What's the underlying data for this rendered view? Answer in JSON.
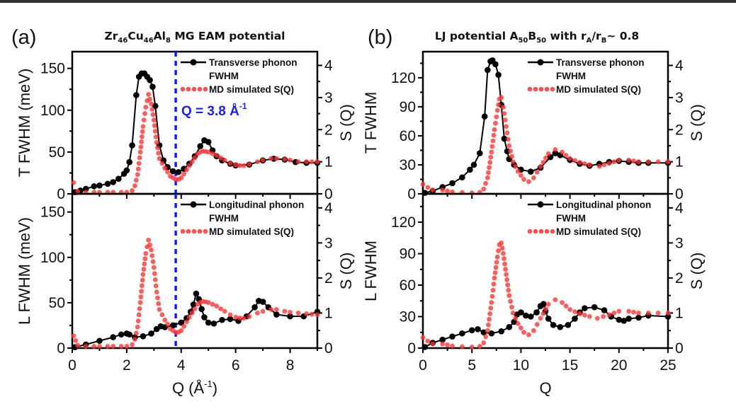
{
  "figure": {
    "panel_letters": [
      "(a)",
      "(b)"
    ],
    "titles": [
      {
        "parts": [
          {
            "t": "Zr",
            "sub": false
          },
          {
            "t": "46",
            "sub": true
          },
          {
            "t": "Cu",
            "sub": false
          },
          {
            "t": "46",
            "sub": true
          },
          {
            "t": "Al",
            "sub": false
          },
          {
            "t": "8",
            "sub": true
          },
          {
            "t": " MG EAM potential",
            "sub": false
          }
        ]
      },
      {
        "parts": [
          {
            "t": "LJ potential A",
            "sub": false
          },
          {
            "t": "50",
            "sub": true
          },
          {
            "t": "B",
            "sub": false
          },
          {
            "t": "50",
            "sub": true
          },
          {
            "t": " with r",
            "sub": false
          },
          {
            "t": "A",
            "sub": true
          },
          {
            "t": "/r",
            "sub": false
          },
          {
            "t": "B",
            "sub": true
          },
          {
            "t": "~ 0.8",
            "sub": false
          }
        ]
      }
    ],
    "annotation": {
      "text": "Q = 3.8 Å",
      "sup": "-1",
      "q": 3.8,
      "color": "#1a1aff"
    },
    "colors": {
      "fwhm": "#000000",
      "sq": "#ff3333",
      "marker_line": "#1a1aff"
    }
  },
  "chart_data": [
    {
      "id": "a-top",
      "type": "line",
      "xlim": [
        0,
        9
      ],
      "ylim": [
        0,
        170
      ],
      "y2lim": [
        0,
        4.43
      ],
      "xticks": [
        0,
        2,
        4,
        6,
        8
      ],
      "yticks": [
        0,
        50,
        100,
        150
      ],
      "y2ticks": [
        0,
        1,
        2,
        3,
        4
      ],
      "xticklabels_shown": false,
      "xlabel": "",
      "ylabel": "T FWHM (meV)",
      "y2label": "S (Q)",
      "vline": 3.8,
      "legend": [
        "Transverse phonon",
        "FWHM",
        "MD simulated S(Q)"
      ],
      "series": [
        {
          "name": "Transverse phonon FWHM",
          "axis": "left",
          "style": "line-dot",
          "x": [
            0.1,
            0.3,
            0.5,
            0.8,
            1.0,
            1.3,
            1.5,
            1.7,
            1.9,
            2.0,
            2.1,
            2.2,
            2.35,
            2.45,
            2.55,
            2.65,
            2.75,
            2.85,
            2.95,
            3.05,
            3.2,
            3.35,
            3.5,
            3.7,
            3.9,
            4.1,
            4.3,
            4.5,
            4.7,
            4.85,
            5.0,
            5.15,
            5.3,
            5.5,
            5.8,
            6.0,
            6.5,
            7.0,
            7.4,
            7.8,
            8.2,
            8.6,
            9.0
          ],
          "y": [
            2,
            4,
            6,
            9,
            10,
            12,
            14,
            18,
            24,
            28,
            38,
            58,
            118,
            140,
            144,
            144,
            140,
            136,
            128,
            105,
            58,
            40,
            32,
            27,
            26,
            30,
            36,
            45,
            57,
            64,
            62,
            52,
            45,
            40,
            36,
            34,
            35,
            40,
            42,
            41,
            38,
            37,
            37
          ]
        },
        {
          "name": "MD simulated S(Q)",
          "axis": "right",
          "style": "dots",
          "x": [
            0.05,
            0.2,
            0.5,
            0.8,
            1.0,
            1.3,
            1.5,
            1.8,
            2.0,
            2.2,
            2.3,
            2.4,
            2.5,
            2.6,
            2.7,
            2.8,
            2.9,
            3.0,
            3.1,
            3.2,
            3.3,
            3.4,
            3.5,
            3.6,
            3.7,
            3.8,
            3.9,
            4.0,
            4.1,
            4.2,
            4.3,
            4.4,
            4.5,
            4.6,
            4.7,
            4.8,
            4.9,
            5.0,
            5.15,
            5.3,
            5.45,
            5.6,
            5.8,
            6.0,
            6.15,
            6.3,
            6.5,
            6.8,
            7.0,
            7.3,
            7.5,
            7.8,
            8.0,
            8.3,
            8.6,
            9.0
          ],
          "y": [
            0.35,
            0.08,
            0.05,
            0.05,
            0.05,
            0.05,
            0.05,
            0.05,
            0.05,
            0.1,
            0.25,
            0.6,
            1.3,
            2.1,
            2.7,
            3.1,
            2.8,
            2.3,
            1.6,
            1.1,
            0.95,
            0.8,
            0.68,
            0.55,
            0.5,
            0.45,
            0.45,
            0.5,
            0.62,
            0.75,
            0.88,
            1.0,
            1.12,
            1.25,
            1.3,
            1.33,
            1.32,
            1.3,
            1.25,
            1.2,
            1.12,
            1.05,
            0.95,
            0.9,
            0.88,
            0.88,
            0.92,
            1.0,
            1.05,
            1.1,
            1.1,
            1.08,
            1.05,
            1.0,
            1.0,
            1.0
          ]
        }
      ]
    },
    {
      "id": "a-bottom",
      "type": "line",
      "xlim": [
        0,
        9
      ],
      "ylim": [
        0,
        170
      ],
      "y2lim": [
        0,
        4.4
      ],
      "xticks": [
        0,
        2,
        4,
        6,
        8
      ],
      "yticks": [
        0,
        50,
        100,
        150
      ],
      "y2ticks": [
        0,
        1,
        2,
        3,
        4
      ],
      "xticklabels_shown": true,
      "xlabel": "Q (Å",
      "xlabel_sup": "-1",
      "xlabel_end": ")",
      "ylabel": "L FWHM (meV)",
      "y2label": "S (Q)",
      "vline": 3.8,
      "legend": [
        "Longitudinal phonon",
        "FWHM",
        "MD simulated S(Q)"
      ],
      "series": [
        {
          "name": "Longitudinal phonon FWHM",
          "axis": "left",
          "style": "line-dot",
          "x": [
            0.1,
            0.5,
            1.0,
            1.5,
            1.8,
            2.0,
            2.1,
            2.3,
            2.6,
            2.9,
            3.1,
            3.25,
            3.4,
            3.7,
            4.0,
            4.2,
            4.35,
            4.45,
            4.55,
            4.65,
            4.75,
            4.85,
            5.0,
            5.2,
            5.5,
            5.8,
            6.1,
            6.4,
            6.7,
            6.85,
            7.0,
            7.2,
            7.5,
            8.0,
            8.5,
            9.0
          ],
          "y": [
            1,
            4,
            8,
            12,
            15,
            16,
            15,
            12,
            13,
            16,
            21,
            24,
            23,
            25,
            28,
            33,
            40,
            48,
            60,
            54,
            43,
            34,
            28,
            27,
            31,
            32,
            30,
            35,
            45,
            52,
            51,
            45,
            37,
            35,
            35,
            40
          ]
        },
        {
          "name": "MD simulated S(Q)",
          "axis": "right",
          "style": "dots",
          "x": [
            0.05,
            0.2,
            0.5,
            0.8,
            1.0,
            1.3,
            1.5,
            1.8,
            2.0,
            2.2,
            2.3,
            2.4,
            2.5,
            2.6,
            2.7,
            2.8,
            2.9,
            3.0,
            3.1,
            3.2,
            3.3,
            3.4,
            3.5,
            3.6,
            3.7,
            3.8,
            3.9,
            4.0,
            4.1,
            4.2,
            4.3,
            4.4,
            4.5,
            4.6,
            4.7,
            4.8,
            4.9,
            5.0,
            5.15,
            5.3,
            5.45,
            5.6,
            5.8,
            6.0,
            6.15,
            6.3,
            6.5,
            6.8,
            7.0,
            7.3,
            7.5,
            7.8,
            8.0,
            8.3,
            8.6,
            9.0
          ],
          "y": [
            0.35,
            0.08,
            0.05,
            0.05,
            0.05,
            0.05,
            0.05,
            0.05,
            0.05,
            0.1,
            0.25,
            0.6,
            1.3,
            2.1,
            2.7,
            3.08,
            2.8,
            2.3,
            1.6,
            1.1,
            0.95,
            0.8,
            0.68,
            0.55,
            0.5,
            0.45,
            0.45,
            0.5,
            0.62,
            0.75,
            0.88,
            1.0,
            1.12,
            1.25,
            1.3,
            1.33,
            1.32,
            1.3,
            1.25,
            1.2,
            1.12,
            1.05,
            0.95,
            0.88,
            0.86,
            0.85,
            0.9,
            1.0,
            1.05,
            1.1,
            1.1,
            1.05,
            1.02,
            1.0,
            0.98,
            0.95
          ]
        }
      ]
    },
    {
      "id": "b-top",
      "type": "line",
      "xlim": [
        0,
        25
      ],
      "ylim": [
        0,
        147
      ],
      "y2lim": [
        0,
        4.43
      ],
      "xticks": [
        0,
        5,
        10,
        15,
        20,
        25
      ],
      "yticks": [
        0,
        30,
        60,
        90,
        120
      ],
      "y2ticks": [
        0,
        1,
        2,
        3,
        4
      ],
      "xticklabels_shown": false,
      "xlabel": "",
      "ylabel": "T FWHM",
      "y2label": "S (Q)",
      "legend": [
        "Transverse phonon",
        "FWHM",
        "MD simulated S(Q)"
      ],
      "series": [
        {
          "name": "Transverse phonon FWHM",
          "axis": "left",
          "style": "line-dot",
          "x": [
            0.2,
            1,
            2,
            3,
            4,
            4.8,
            5.2,
            5.8,
            6.3,
            6.6,
            6.9,
            7.1,
            7.4,
            7.7,
            8.0,
            8.3,
            8.6,
            8.8,
            9.3,
            10,
            11,
            12,
            13,
            13.5,
            14,
            15,
            16,
            17,
            18,
            19,
            20,
            21,
            22,
            23,
            25
          ],
          "y": [
            1,
            3,
            7,
            11,
            17,
            25,
            30,
            42,
            80,
            128,
            137,
            138,
            134,
            123,
            92,
            57,
            44,
            36,
            30,
            25,
            23,
            27,
            38,
            42,
            40,
            35,
            31,
            29,
            31,
            33,
            34,
            33,
            32,
            32,
            32
          ]
        },
        {
          "name": "MD simulated S(Q)",
          "axis": "right",
          "style": "dots",
          "x": [
            0,
            0.5,
            1,
            2,
            3,
            4,
            5,
            5.8,
            6.2,
            6.6,
            7.0,
            7.3,
            7.6,
            7.8,
            8.0,
            8.2,
            8.5,
            8.8,
            9.2,
            9.7,
            10.3,
            10.8,
            11.3,
            12,
            12.8,
            13.5,
            14.2,
            15,
            16,
            17,
            18,
            19,
            20,
            21,
            22,
            23,
            24,
            25
          ],
          "y": [
            0.3,
            0.2,
            0.12,
            0.12,
            0.06,
            0.04,
            0.03,
            0.05,
            0.15,
            0.5,
            1.3,
            2.0,
            2.6,
            2.95,
            3.0,
            2.7,
            2.1,
            1.5,
            1.0,
            0.7,
            0.45,
            0.38,
            0.5,
            0.85,
            1.25,
            1.38,
            1.3,
            1.1,
            0.98,
            0.9,
            0.86,
            0.95,
            1.05,
            1.05,
            1.0,
            1.0,
            1.0,
            1.0
          ]
        }
      ]
    },
    {
      "id": "b-bottom",
      "type": "line",
      "xlim": [
        0,
        25
      ],
      "ylim": [
        0,
        147
      ],
      "y2lim": [
        0,
        4.4
      ],
      "xticks": [
        0,
        5,
        10,
        15,
        20,
        25
      ],
      "yticks": [
        0,
        30,
        60,
        90,
        120
      ],
      "y2ticks": [
        0,
        1,
        2,
        3,
        4
      ],
      "xticklabels_shown": true,
      "xlabel": "Q",
      "ylabel": "L FWHM",
      "y2label": "S (Q)",
      "legend": [
        "Longitudinal phonon",
        "FWHM",
        "MD simulated S(Q)"
      ],
      "series": [
        {
          "name": "Longitudinal phonon FWHM",
          "axis": "left",
          "style": "line-dot",
          "x": [
            0.2,
            1,
            2,
            3,
            4,
            5,
            5.6,
            6.2,
            7,
            8,
            8.8,
            9.3,
            9.6,
            10,
            10.5,
            11,
            11.6,
            12,
            12.3,
            12.5,
            12.8,
            13.3,
            14,
            14.8,
            15.5,
            16,
            16.5,
            17.5,
            18.5,
            19.2,
            20,
            20.5,
            21,
            22,
            23,
            25
          ],
          "y": [
            1,
            5,
            8,
            11,
            14,
            17,
            18,
            15,
            14,
            16,
            20,
            25,
            32,
            34,
            31,
            30,
            34,
            40,
            42,
            35,
            28,
            22,
            20,
            22,
            28,
            34,
            38,
            39,
            36,
            30,
            27,
            26,
            28,
            29,
            31,
            30
          ]
        },
        {
          "name": "MD simulated S(Q)",
          "axis": "right",
          "style": "dots",
          "x": [
            0,
            0.5,
            1,
            2,
            3,
            4,
            5,
            5.8,
            6.2,
            6.6,
            7.0,
            7.3,
            7.6,
            7.8,
            8.0,
            8.2,
            8.5,
            8.8,
            9.2,
            9.7,
            10.3,
            10.8,
            11.3,
            12,
            12.8,
            13.5,
            14.2,
            15,
            16,
            17,
            17.8,
            19,
            20,
            21,
            22,
            23,
            24,
            25
          ],
          "y": [
            0.3,
            0.2,
            0.12,
            0.12,
            0.06,
            0.04,
            0.03,
            0.05,
            0.15,
            0.5,
            1.3,
            2.0,
            2.6,
            2.95,
            3.0,
            2.7,
            2.1,
            1.5,
            1.0,
            0.7,
            0.45,
            0.38,
            0.5,
            0.85,
            1.25,
            1.38,
            1.3,
            1.1,
            0.98,
            0.9,
            0.85,
            0.95,
            1.05,
            1.05,
            1.0,
            1.0,
            1.0,
            1.0
          ]
        }
      ]
    }
  ]
}
